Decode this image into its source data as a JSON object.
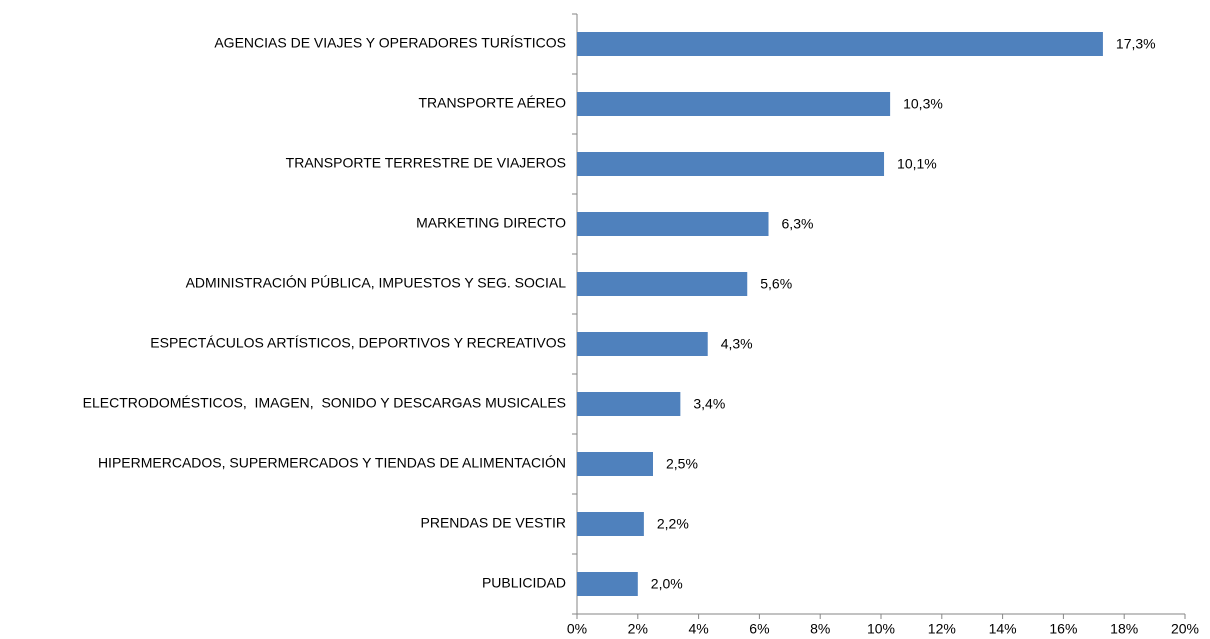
{
  "chart_data": {
    "type": "barh",
    "categories": [
      "AGENCIAS DE VIAJES Y OPERADORES TURÍSTICOS",
      "TRANSPORTE AÉREO",
      "TRANSPORTE TERRESTRE DE VIAJEROS",
      "MARKETING DIRECTO",
      "ADMINISTRACIÓN PÚBLICA, IMPUESTOS Y SEG. SOCIAL",
      "ESPECTÁCULOS ARTÍSTICOS, DEPORTIVOS Y RECREATIVOS",
      "ELECTRODOMÉSTICOS,  IMAGEN,  SONIDO Y DESCARGAS MUSICALES",
      "HIPERMERCADOS, SUPERMERCADOS Y TIENDAS DE ALIMENTACIÓN",
      "PRENDAS DE VESTIR",
      "PUBLICIDAD"
    ],
    "values": [
      17.3,
      10.3,
      10.1,
      6.3,
      5.6,
      4.3,
      3.4,
      2.5,
      2.2,
      2.0
    ],
    "value_labels": [
      "17,3%",
      "10,3%",
      "10,1%",
      "6,3%",
      "5,6%",
      "4,3%",
      "3,4%",
      "2,5%",
      "2,2%",
      "2,0%"
    ],
    "color": "#4f81bd",
    "xlim": [
      0,
      20
    ],
    "xticks": [
      {
        "value": 0,
        "label": "0%"
      },
      {
        "value": 2,
        "label": "2%"
      },
      {
        "value": 4,
        "label": "4%"
      },
      {
        "value": 6,
        "label": "6%"
      },
      {
        "value": 8,
        "label": "8%"
      },
      {
        "value": 10,
        "label": "10%"
      },
      {
        "value": 12,
        "label": "12%"
      },
      {
        "value": 14,
        "label": "14%"
      },
      {
        "value": 16,
        "label": "16%"
      },
      {
        "value": 18,
        "label": "18%"
      },
      {
        "value": 20,
        "label": "20%"
      }
    ]
  }
}
